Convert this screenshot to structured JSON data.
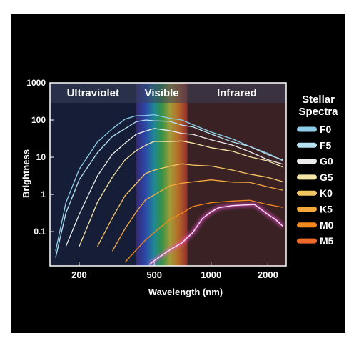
{
  "chart_data": {
    "type": "line",
    "title": "",
    "xlabel": "Wavelength (nm)",
    "ylabel": "Brightness",
    "x_scale": "log",
    "y_scale": "log",
    "xlim": [
      140,
      2500
    ],
    "ylim": [
      0.012,
      1000
    ],
    "x_ticks": [
      200,
      500,
      1000,
      2000
    ],
    "y_ticks": [
      0.1,
      1,
      10,
      100,
      1000
    ],
    "x_tick_labels": [
      "200",
      "500",
      "1000",
      "2000"
    ],
    "y_tick_labels": [
      "0.1",
      "1",
      "10",
      "100",
      "1000"
    ],
    "bands": [
      {
        "label": "Ultraviolet",
        "from": 140,
        "to": 400
      },
      {
        "label": "Visible",
        "from": 400,
        "to": 750
      },
      {
        "label": "Infrared",
        "from": 750,
        "to": 2500
      }
    ],
    "legend_title": [
      "Stellar",
      "Spectra"
    ],
    "legend_position": "right",
    "series": [
      {
        "name": "F0",
        "color": "#8ccde8",
        "points": [
          [
            150,
            0.03
          ],
          [
            170,
            0.6
          ],
          [
            200,
            5
          ],
          [
            250,
            25
          ],
          [
            300,
            60
          ],
          [
            350,
            100
          ],
          [
            400,
            130
          ],
          [
            450,
            140
          ],
          [
            500,
            135
          ],
          [
            600,
            115
          ],
          [
            700,
            95
          ],
          [
            800,
            75
          ],
          [
            1000,
            50
          ],
          [
            1300,
            30
          ],
          [
            1600,
            20
          ],
          [
            2000,
            12
          ],
          [
            2400,
            8
          ]
        ]
      },
      {
        "name": "F5",
        "color": "#b6e2f2",
        "points": [
          [
            150,
            0.02
          ],
          [
            170,
            0.3
          ],
          [
            200,
            2.5
          ],
          [
            250,
            14
          ],
          [
            300,
            35
          ],
          [
            350,
            60
          ],
          [
            400,
            85
          ],
          [
            450,
            100
          ],
          [
            500,
            100
          ],
          [
            600,
            90
          ],
          [
            700,
            75
          ],
          [
            800,
            62
          ],
          [
            1000,
            42
          ],
          [
            1300,
            27
          ],
          [
            1600,
            19
          ],
          [
            2000,
            12
          ],
          [
            2400,
            8.5
          ]
        ]
      },
      {
        "name": "G0",
        "color": "#ececec",
        "points": [
          [
            170,
            0.04
          ],
          [
            200,
            0.3
          ],
          [
            250,
            3
          ],
          [
            300,
            12
          ],
          [
            350,
            25
          ],
          [
            400,
            40
          ],
          [
            450,
            52
          ],
          [
            500,
            56
          ],
          [
            600,
            52
          ],
          [
            700,
            46
          ],
          [
            800,
            40
          ],
          [
            1000,
            30
          ],
          [
            1300,
            20
          ],
          [
            1600,
            14
          ],
          [
            2000,
            9
          ],
          [
            2400,
            6.5
          ]
        ]
      },
      {
        "name": "G5",
        "color": "#f4e6a6",
        "points": [
          [
            200,
            0.04
          ],
          [
            250,
            0.6
          ],
          [
            300,
            3
          ],
          [
            350,
            8
          ],
          [
            400,
            15
          ],
          [
            450,
            22
          ],
          [
            500,
            26
          ],
          [
            600,
            27
          ],
          [
            700,
            26
          ],
          [
            800,
            24
          ],
          [
            1000,
            19
          ],
          [
            1300,
            14
          ],
          [
            1600,
            10.5
          ],
          [
            2000,
            7.5
          ],
          [
            2400,
            5.5
          ]
        ]
      },
      {
        "name": "K0",
        "color": "#f6c563",
        "points": [
          [
            250,
            0.04
          ],
          [
            300,
            0.25
          ],
          [
            350,
            0.9
          ],
          [
            400,
            2
          ],
          [
            450,
            3.5
          ],
          [
            500,
            4.5
          ],
          [
            600,
            6
          ],
          [
            700,
            6.5
          ],
          [
            800,
            6.3
          ],
          [
            1000,
            5.5
          ],
          [
            1300,
            4.5
          ],
          [
            1600,
            3.7
          ],
          [
            2000,
            2.8
          ],
          [
            2400,
            2.2
          ]
        ]
      },
      {
        "name": "K5",
        "color": "#f6a83d",
        "points": [
          [
            300,
            0.03
          ],
          [
            350,
            0.12
          ],
          [
            400,
            0.35
          ],
          [
            450,
            0.7
          ],
          [
            500,
            1
          ],
          [
            600,
            1.6
          ],
          [
            700,
            2
          ],
          [
            800,
            2.3
          ],
          [
            1000,
            2.4
          ],
          [
            1300,
            2.2
          ],
          [
            1600,
            2
          ],
          [
            2000,
            1.6
          ],
          [
            2400,
            1.3
          ]
        ]
      },
      {
        "name": "M0",
        "color": "#f28a1e",
        "points": [
          [
            350,
            0.015
          ],
          [
            400,
            0.03
          ],
          [
            450,
            0.06
          ],
          [
            500,
            0.1
          ],
          [
            600,
            0.2
          ],
          [
            700,
            0.32
          ],
          [
            800,
            0.45
          ],
          [
            1000,
            0.6
          ],
          [
            1300,
            0.7
          ],
          [
            1600,
            0.68
          ],
          [
            2000,
            0.55
          ],
          [
            2400,
            0.45
          ]
        ]
      },
      {
        "name": "M5",
        "color": "#ee6a2a",
        "points": [
          [
            470,
            0.013
          ],
          [
            500,
            0.017
          ],
          [
            600,
            0.03
          ],
          [
            700,
            0.05
          ],
          [
            800,
            0.1
          ],
          [
            900,
            0.22
          ],
          [
            1000,
            0.35
          ],
          [
            1100,
            0.42
          ],
          [
            1300,
            0.5
          ],
          [
            1500,
            0.55
          ],
          [
            1700,
            0.52
          ],
          [
            2000,
            0.3
          ],
          [
            2200,
            0.2
          ],
          [
            2400,
            0.14
          ]
        ]
      }
    ]
  }
}
